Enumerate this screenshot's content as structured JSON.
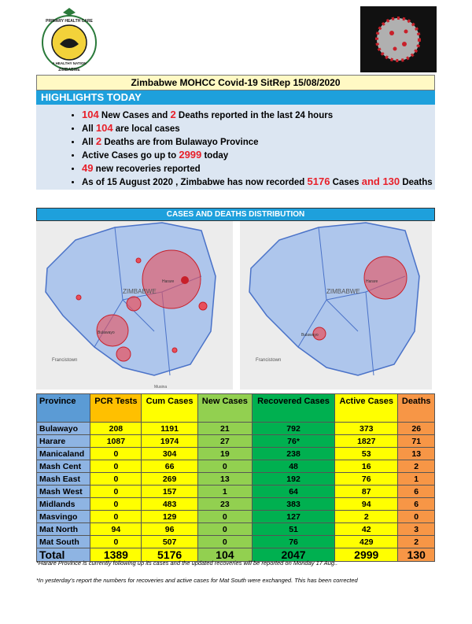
{
  "logo": {
    "top": "PRIMARY HEALTH CARE",
    "middle": "A HEALTHY NATION",
    "bottom": "ZIMBABWE"
  },
  "header": {
    "title": "Zimbabwe MOHCC Covid-19 SitRep 15/08/2020"
  },
  "highlights": {
    "title": "HIGHLIGHTS TODAY",
    "bullets": [
      [
        {
          "text": "104",
          "color": "#e8202a"
        },
        " New Cases and ",
        {
          "text": "2",
          "color": "#e8202a"
        },
        " Deaths reported in the last 24 hours"
      ],
      [
        "All ",
        {
          "text": "104",
          "color": "#e8202a"
        },
        " are local cases"
      ],
      [
        "All ",
        {
          "text": "2",
          "color": "#e8202a"
        },
        " Deaths are from Bulawayo Province"
      ],
      [
        "Active Cases go up to ",
        {
          "text": "2999",
          "color": "#e8202a"
        },
        " today"
      ],
      [
        {
          "text": "49",
          "color": "#e8202a"
        },
        " new recoveries reported"
      ],
      [
        "As of 15 August 2020 , Zimbabwe has now recorded ",
        {
          "text": "5176",
          "color": "#e8202a"
        },
        " Cases ",
        {
          "text": "and 130",
          "color": "#e8202a"
        },
        " Deaths"
      ]
    ]
  },
  "maps": {
    "title": "CASES AND DEATHS DISTRIBUTION",
    "labels": {
      "country": "ZIMBABWE",
      "city1": "Francistown",
      "city2": "Harare",
      "city3": "Bulawayo",
      "city4": "Musina"
    }
  },
  "table": {
    "header": [
      "Province",
      "PCR Tests",
      "Cum Cases",
      "New Cases",
      "Recovered Cases",
      "Active Cases",
      "Deaths"
    ],
    "rows": [
      [
        "Bulawayo",
        208,
        1191,
        21,
        792,
        373,
        26
      ],
      [
        "Harare",
        1087,
        1974,
        27,
        "76*",
        1827,
        71
      ],
      [
        "Manicaland",
        0,
        304,
        19,
        238,
        53,
        13
      ],
      [
        "Mash Cent",
        0,
        66,
        0,
        48,
        16,
        2
      ],
      [
        "Mash East",
        0,
        269,
        13,
        192,
        76,
        1
      ],
      [
        "Mash West",
        0,
        157,
        1,
        64,
        87,
        6
      ],
      [
        "Midlands",
        0,
        483,
        23,
        383,
        94,
        6
      ],
      [
        "Masvingo",
        0,
        129,
        0,
        127,
        2,
        0
      ],
      [
        "Mat North",
        94,
        96,
        0,
        51,
        42,
        3
      ],
      [
        "Mat South",
        0,
        507,
        0,
        76,
        429,
        2
      ],
      [
        "Total",
        1389,
        5176,
        104,
        2047,
        2999,
        130
      ]
    ]
  },
  "notes": [
    "*Harare Province is currently following up its cases and the updated recoveries will be reported on Monday 17 Aug..",
    "*In yesterday's report the numbers for recoveries and active cases for Mat South were exchanged. This has been corrected"
  ]
}
